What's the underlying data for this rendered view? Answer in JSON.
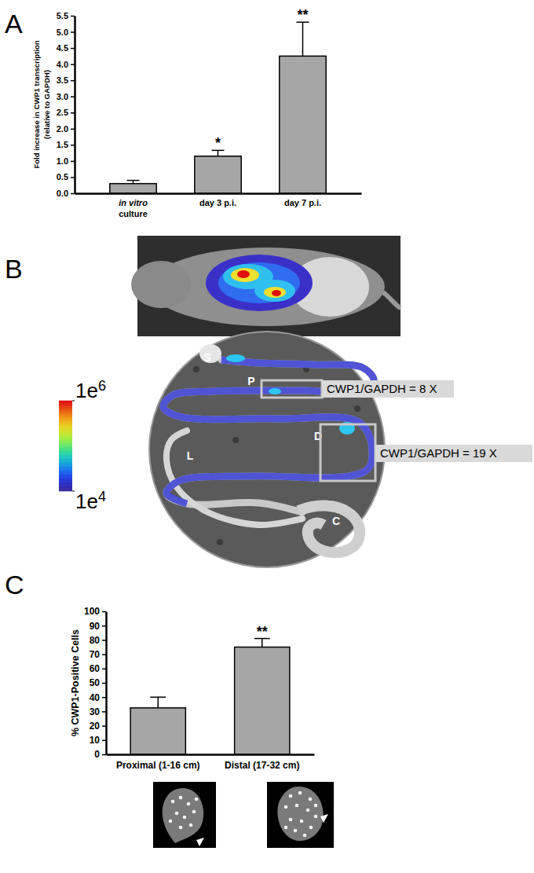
{
  "chart_data": [
    {
      "type": "bar",
      "title": "A",
      "categories": [
        "in vitro\nculture",
        "day 3 p.i.",
        "day 7 p.i."
      ],
      "values": [
        0.3,
        1.15,
        4.25
      ],
      "errors": [
        0.1,
        0.18,
        1.05
      ],
      "significance": [
        null,
        "*",
        "**"
      ],
      "y_label": [
        "Fold increase in CWP1 transcription",
        "(relative to GAPDH)"
      ],
      "ylim": [
        0,
        5.5
      ],
      "yticks": [
        {
          "value": 0,
          "label": "0.0"
        },
        0.5,
        {
          "value": 1,
          "label": "1.0"
        },
        1.5,
        {
          "value": 2,
          "label": "2.0"
        },
        2.5,
        {
          "value": 3,
          "label": "3.0"
        },
        3.5,
        {
          "value": 4,
          "label": "4.0"
        },
        4.5,
        {
          "value": 5,
          "label": "5.0"
        },
        5.5
      ],
      "color": "#a6a6a6"
    },
    {
      "type": "image",
      "title": "B",
      "region_labels": [
        "S",
        "P",
        "D",
        "L",
        "C"
      ],
      "annotations": [
        "CWP1/GAPDH = 8 X",
        "CWP1/GAPDH = 19 X"
      ],
      "colorbar": {
        "range": [
          10000,
          1000000
        ],
        "ticks": [
          {
            "value": 1000000,
            "label": "1e6"
          },
          {
            "value": 10000,
            "label": "1e4"
          }
        ],
        "log": true
      }
    },
    {
      "type": "bar",
      "title": "C",
      "categories": [
        "Proximal (1-16 cm)",
        "Distal (17-32 cm)"
      ],
      "values": [
        32.5,
        75
      ],
      "errors": [
        7.5,
        6
      ],
      "significance": [
        null,
        "**"
      ],
      "y_label": "% CWP1-Positive Cells",
      "ylim": [
        0,
        100
      ],
      "yticks": [
        0,
        10,
        20,
        30,
        40,
        50,
        60,
        70,
        80,
        90,
        100
      ],
      "color": "#a6a6a6"
    }
  ]
}
